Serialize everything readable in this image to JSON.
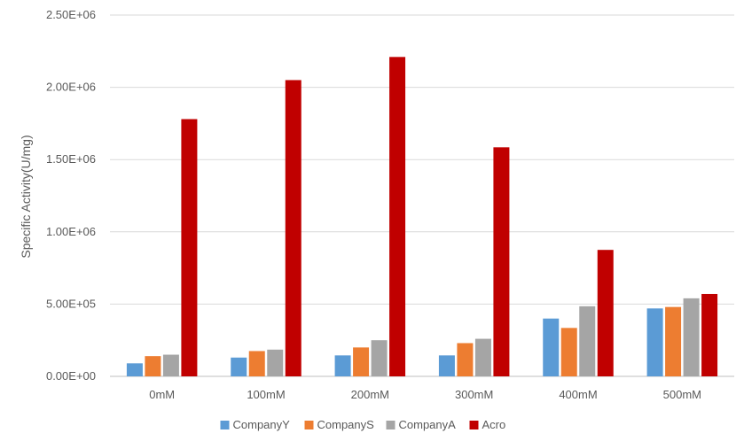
{
  "chart_data": {
    "type": "bar",
    "title": "",
    "xlabel": "",
    "ylabel": "Specific Activity(U/mg)",
    "categories": [
      "0mM",
      "100mM",
      "200mM",
      "300mM",
      "400mM",
      "500mM"
    ],
    "series": [
      {
        "name": "CompanyY",
        "color": "#5b9bd5",
        "values": [
          90000,
          130000,
          145000,
          145000,
          400000,
          470000
        ]
      },
      {
        "name": "CompanyS",
        "color": "#ed7d31",
        "values": [
          140000,
          175000,
          200000,
          230000,
          335000,
          480000
        ]
      },
      {
        "name": "CompanyA",
        "color": "#a5a5a5",
        "values": [
          150000,
          185000,
          250000,
          260000,
          485000,
          540000
        ]
      },
      {
        "name": "Acro",
        "color": "#c00000",
        "values": [
          1780000,
          2050000,
          2210000,
          1585000,
          875000,
          570000
        ]
      }
    ],
    "ylim": [
      0,
      2500000
    ],
    "yticks": [
      "0.00E+00",
      "5.00E+05",
      "1.00E+06",
      "1.50E+06",
      "2.00E+06",
      "2.50E+06"
    ],
    "grid": true,
    "legend": "bottom"
  }
}
